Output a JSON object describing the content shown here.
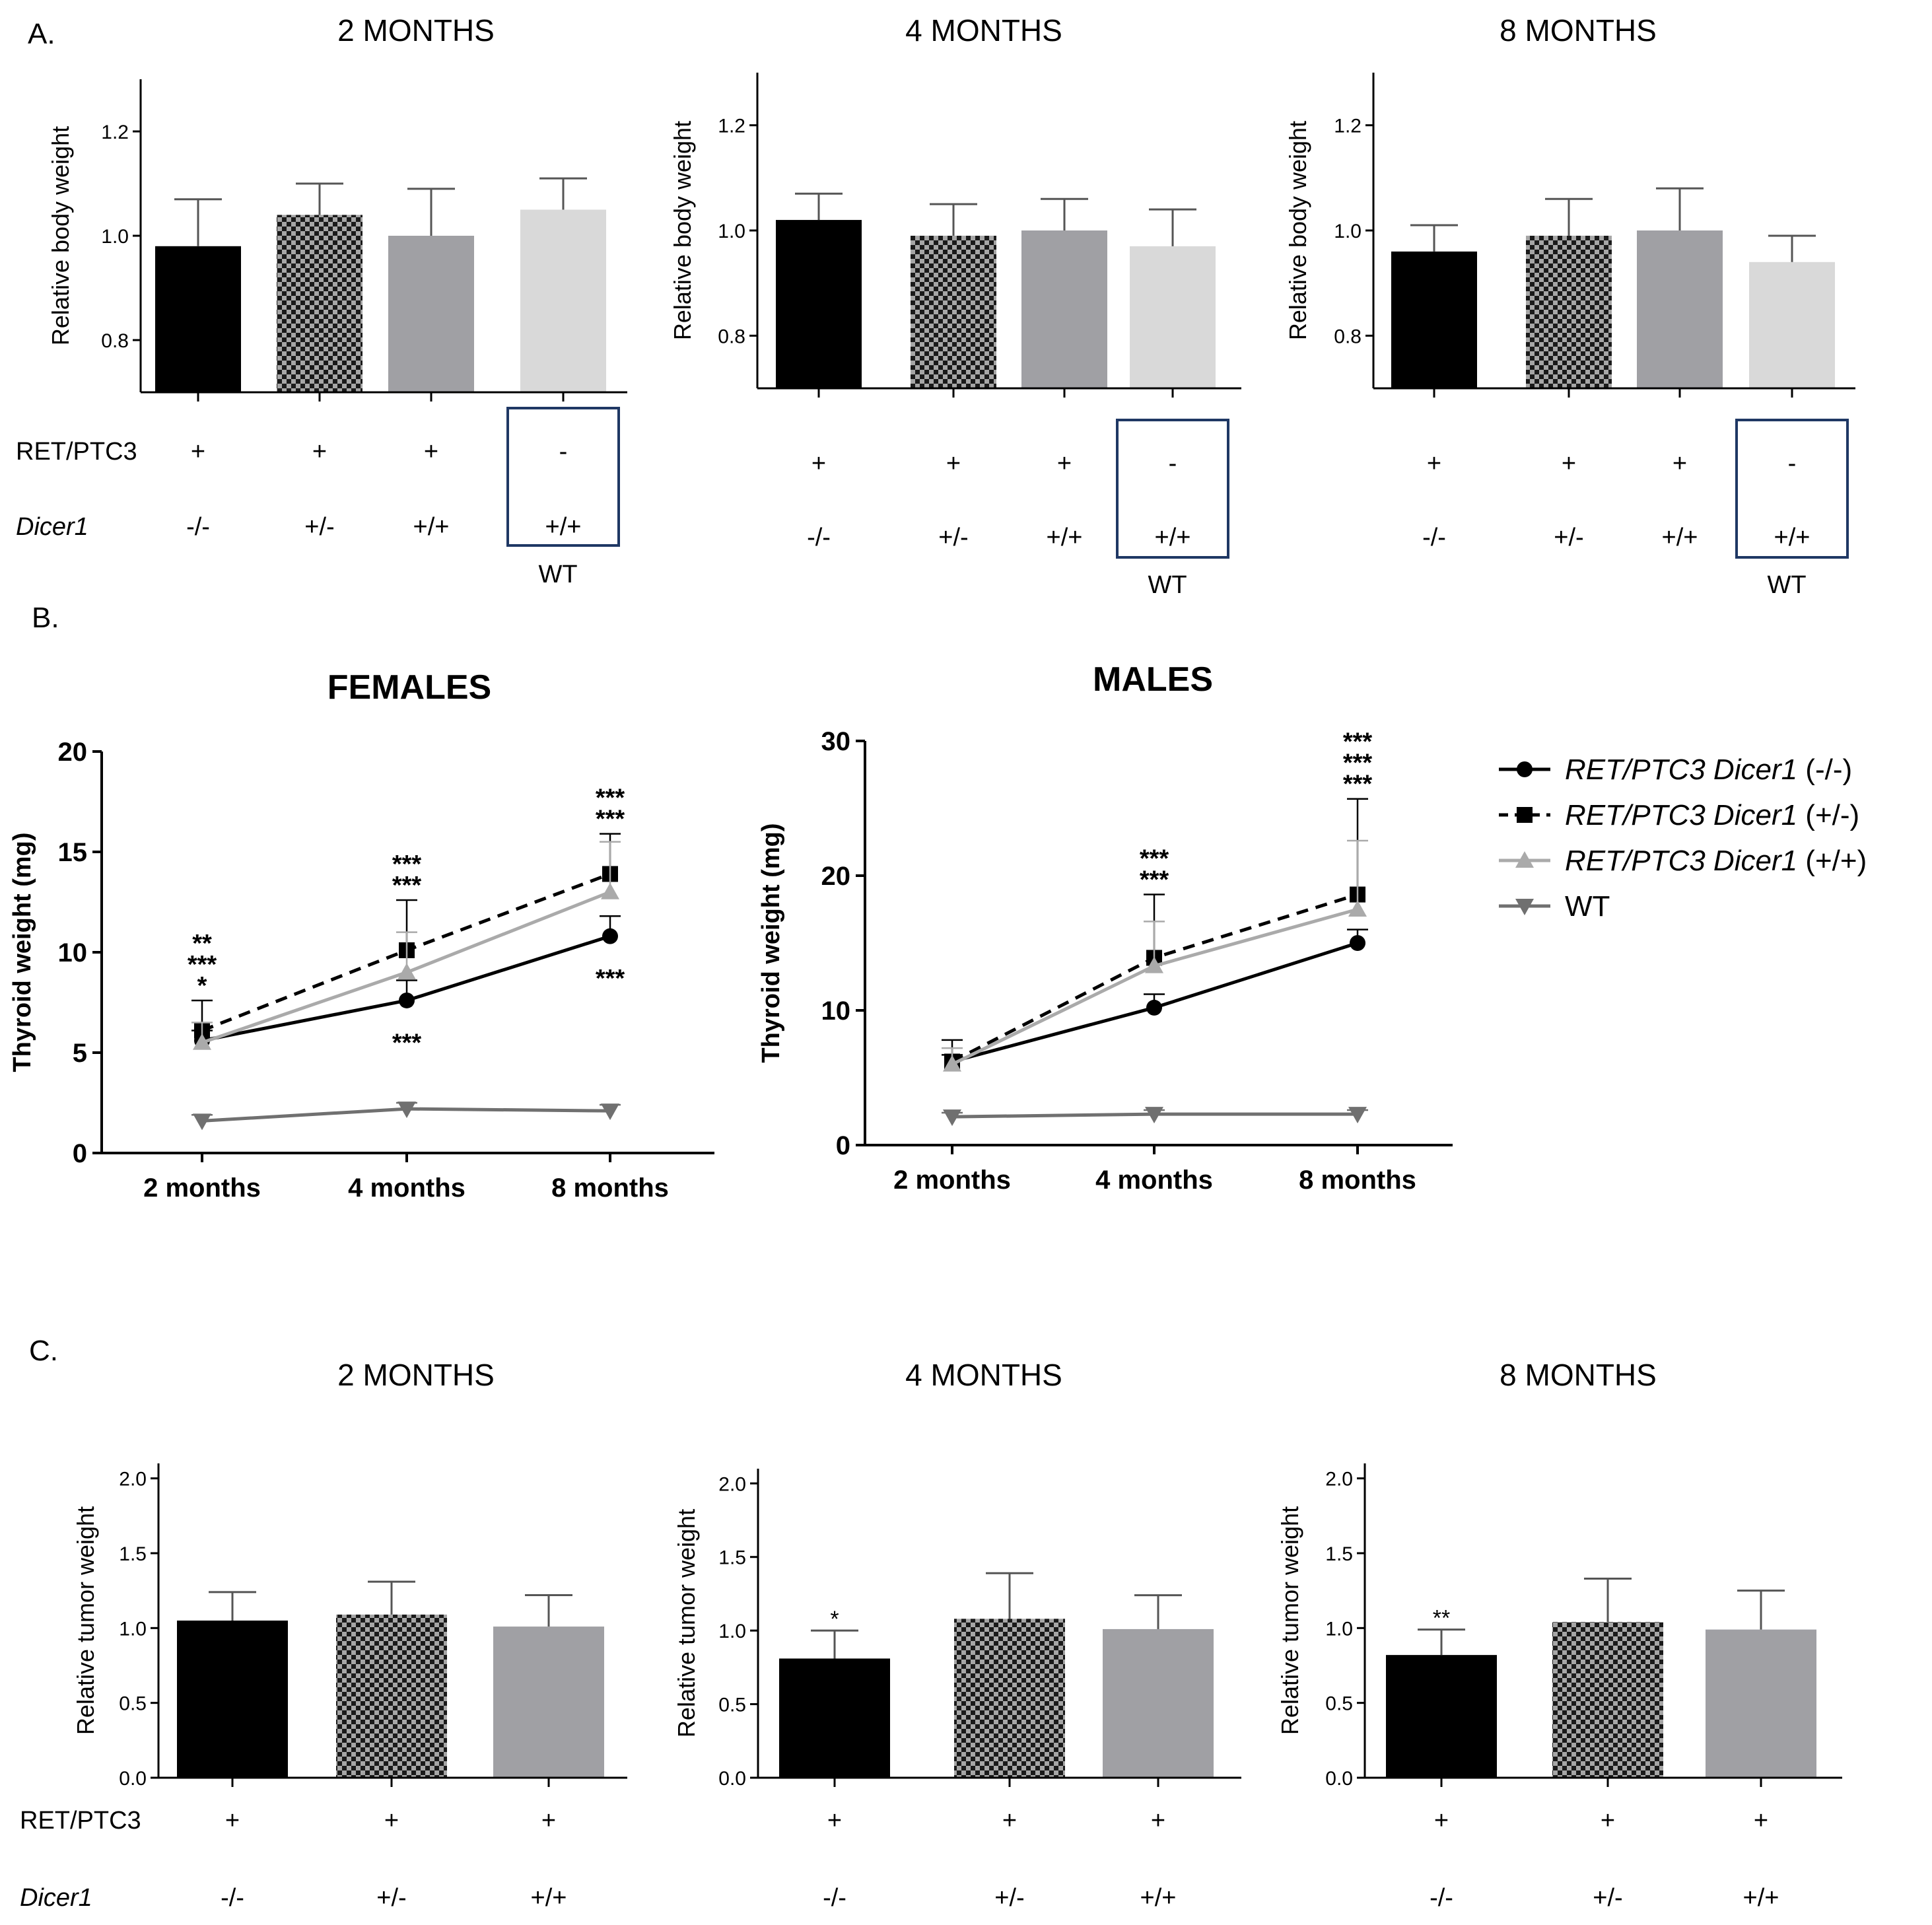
{
  "panels": {
    "A": "A.",
    "B": "B.",
    "C": "C."
  },
  "colors": {
    "black": "#000000",
    "checker_light": "#a6a6a6",
    "checker_dark": "#1a1a1a",
    "gray": "#a0a0a4",
    "light_gray": "#d9d9d9",
    "line_light_gray": "#aaaaaa",
    "line_gray": "#707070",
    "wt_box": "#1f3864"
  },
  "chart_data": [
    {
      "id": "A1",
      "type": "bar",
      "title": "2 MONTHS",
      "ylabel": "Relative body weight",
      "ylim": [
        0.7,
        1.3
      ],
      "yticks": [
        "0.8",
        "1.0",
        "1.2"
      ],
      "categories": [
        "RET/PTC3 Dicer1 (-/-)",
        "RET/PTC3 Dicer1 (+/-)",
        "RET/PTC3 Dicer1 (+/+)",
        "WT"
      ],
      "values": [
        0.98,
        1.04,
        1.0,
        1.05
      ],
      "errors": [
        0.09,
        0.06,
        0.09,
        0.06
      ],
      "genotype": {
        "row_labels": [
          "RET/PTC3",
          "Dicer1"
        ],
        "ret": [
          "+",
          "+",
          "+",
          "-"
        ],
        "dicer": [
          "-/-",
          "+/-",
          "+/+",
          "+/+"
        ],
        "wt_label": "WT"
      }
    },
    {
      "id": "A2",
      "type": "bar",
      "title": "4 MONTHS",
      "ylabel": "Relative body weight",
      "ylim": [
        0.7,
        1.3
      ],
      "yticks": [
        "0.8",
        "1.0",
        "1.2"
      ],
      "categories": [
        "RET/PTC3 Dicer1 (-/-)",
        "RET/PTC3 Dicer1 (+/-)",
        "RET/PTC3 Dicer1 (+/+)",
        "WT"
      ],
      "values": [
        1.02,
        0.99,
        1.0,
        0.97
      ],
      "errors": [
        0.05,
        0.06,
        0.06,
        0.07
      ],
      "genotype": {
        "row_labels": [],
        "ret": [
          "+",
          "+",
          "+",
          "-"
        ],
        "dicer": [
          "-/-",
          "+/-",
          "+/+",
          "+/+"
        ],
        "wt_label": "WT"
      }
    },
    {
      "id": "A3",
      "type": "bar",
      "title": "8 MONTHS",
      "ylabel": "Relative body weight",
      "ylim": [
        0.7,
        1.3
      ],
      "yticks": [
        "0.8",
        "1.0",
        "1.2"
      ],
      "categories": [
        "RET/PTC3 Dicer1 (-/-)",
        "RET/PTC3 Dicer1 (+/-)",
        "RET/PTC3 Dicer1 (+/+)",
        "WT"
      ],
      "values": [
        0.96,
        0.99,
        1.0,
        0.94
      ],
      "errors": [
        0.05,
        0.07,
        0.08,
        0.05
      ],
      "genotype": {
        "row_labels": [],
        "ret": [
          "+",
          "+",
          "+",
          "-"
        ],
        "dicer": [
          "-/-",
          "+/-",
          "+/+",
          "+/+"
        ],
        "wt_label": "WT"
      }
    },
    {
      "id": "B1",
      "type": "line",
      "title": "FEMALES",
      "ylabel": "Thyroid weight (mg)",
      "categories": [
        "2 months",
        "4 months",
        "8 months"
      ],
      "ylim": [
        0,
        20
      ],
      "yticks": [
        "0",
        "5",
        "10",
        "15",
        "20"
      ],
      "series": [
        {
          "name": "RET/PTC3 Dicer1 (-/-)",
          "values": [
            5.6,
            7.6,
            10.8
          ],
          "errors": [
            0.5,
            1.0,
            1.0
          ]
        },
        {
          "name": "RET/PTC3 Dicer1 (+/-)",
          "values": [
            6.1,
            10.1,
            13.9
          ],
          "errors": [
            1.5,
            2.5,
            2.0
          ]
        },
        {
          "name": "RET/PTC3 Dicer1 (+/+)",
          "values": [
            5.5,
            9.0,
            13.0
          ],
          "errors": [
            1.0,
            2.0,
            2.5
          ]
        },
        {
          "name": "WT",
          "values": [
            1.6,
            2.2,
            2.1
          ],
          "errors": [
            0.3,
            0.3,
            0.3
          ]
        }
      ],
      "annotations_above": [
        [
          "**",
          "***",
          "*"
        ],
        [
          "***",
          "***"
        ],
        [
          "***",
          "***"
        ]
      ],
      "annotations_below": [
        [],
        [
          "***"
        ],
        [
          "***"
        ]
      ]
    },
    {
      "id": "B2",
      "type": "line",
      "title": "MALES",
      "ylabel": "Thyroid weight (mg)",
      "categories": [
        "2 months",
        "4 months",
        "8 months"
      ],
      "ylim": [
        0,
        30
      ],
      "yticks": [
        "0",
        "10",
        "20",
        "30"
      ],
      "series": [
        {
          "name": "RET/PTC3 Dicer1 (-/-)",
          "values": [
            6.2,
            10.2,
            15.0
          ],
          "errors": [
            0.5,
            1.0,
            1.0
          ]
        },
        {
          "name": "RET/PTC3 Dicer1 (+/-)",
          "values": [
            6.2,
            13.9,
            18.6
          ],
          "errors": [
            1.6,
            4.7,
            7.1
          ]
        },
        {
          "name": "RET/PTC3 Dicer1 (+/+)",
          "values": [
            6.0,
            13.3,
            17.5
          ],
          "errors": [
            1.2,
            3.3,
            5.1
          ]
        },
        {
          "name": "WT",
          "values": [
            2.1,
            2.3,
            2.3
          ],
          "errors": [
            0.3,
            0.3,
            0.3
          ]
        }
      ],
      "annotations_above": [
        [],
        [
          "***",
          "***"
        ],
        [
          "***",
          "***",
          "***"
        ]
      ],
      "annotations_below": [
        [],
        [],
        []
      ]
    },
    {
      "id": "C1",
      "type": "bar",
      "title": "2 MONTHS",
      "ylabel": "Relative tumor weight",
      "ylim": [
        0,
        2.1
      ],
      "yticks": [
        "0.0",
        "0.5",
        "1.0",
        "1.5",
        "2.0"
      ],
      "categories": [
        "RET/PTC3 Dicer1 (-/-)",
        "RET/PTC3 Dicer1 (+/-)",
        "RET/PTC3 Dicer1 (+/+)"
      ],
      "values": [
        1.05,
        1.09,
        1.01
      ],
      "errors": [
        0.19,
        0.22,
        0.21
      ],
      "significance": [
        "",
        "",
        ""
      ],
      "genotype": {
        "row_labels": [
          "RET/PTC3",
          "Dicer1"
        ],
        "ret": [
          "+",
          "+",
          "+"
        ],
        "dicer": [
          "-/-",
          "+/-",
          "+/+"
        ]
      }
    },
    {
      "id": "C2",
      "type": "bar",
      "title": "4 MONTHS",
      "ylabel": "Relative tumor weight",
      "ylim": [
        0,
        2.1
      ],
      "yticks": [
        "0.0",
        "0.5",
        "1.0",
        "1.5",
        "2.0"
      ],
      "categories": [
        "RET/PTC3 Dicer1 (-/-)",
        "RET/PTC3 Dicer1 (+/-)",
        "RET/PTC3 Dicer1 (+/+)"
      ],
      "values": [
        0.81,
        1.08,
        1.01
      ],
      "errors": [
        0.19,
        0.31,
        0.23
      ],
      "significance": [
        "*",
        "",
        ""
      ],
      "genotype": {
        "row_labels": [],
        "ret": [
          "+",
          "+",
          "+"
        ],
        "dicer": [
          "-/-",
          "+/-",
          "+/+"
        ]
      }
    },
    {
      "id": "C3",
      "type": "bar",
      "title": "8 MONTHS",
      "ylabel": "Relative tumor weight",
      "ylim": [
        0,
        2.1
      ],
      "yticks": [
        "0.0",
        "0.5",
        "1.0",
        "1.5",
        "2.0"
      ],
      "categories": [
        "RET/PTC3 Dicer1 (-/-)",
        "RET/PTC3 Dicer1 (+/-)",
        "RET/PTC3 Dicer1 (+/+)"
      ],
      "values": [
        0.82,
        1.04,
        0.99
      ],
      "errors": [
        0.17,
        0.29,
        0.26
      ],
      "significance": [
        "**",
        "",
        ""
      ],
      "genotype": {
        "row_labels": [],
        "ret": [
          "+",
          "+",
          "+"
        ],
        "dicer": [
          "-/-",
          "+/-",
          "+/+"
        ]
      }
    }
  ],
  "legend": {
    "items": [
      {
        "italic": "RET/PTC3 Dicer1",
        "plain": " (-/-)"
      },
      {
        "italic": "RET/PTC3 Dicer1",
        "plain": " (+/-)"
      },
      {
        "italic": "RET/PTC3 Dicer1",
        "plain": " (+/+)"
      },
      {
        "italic": "",
        "plain": "WT"
      }
    ]
  }
}
